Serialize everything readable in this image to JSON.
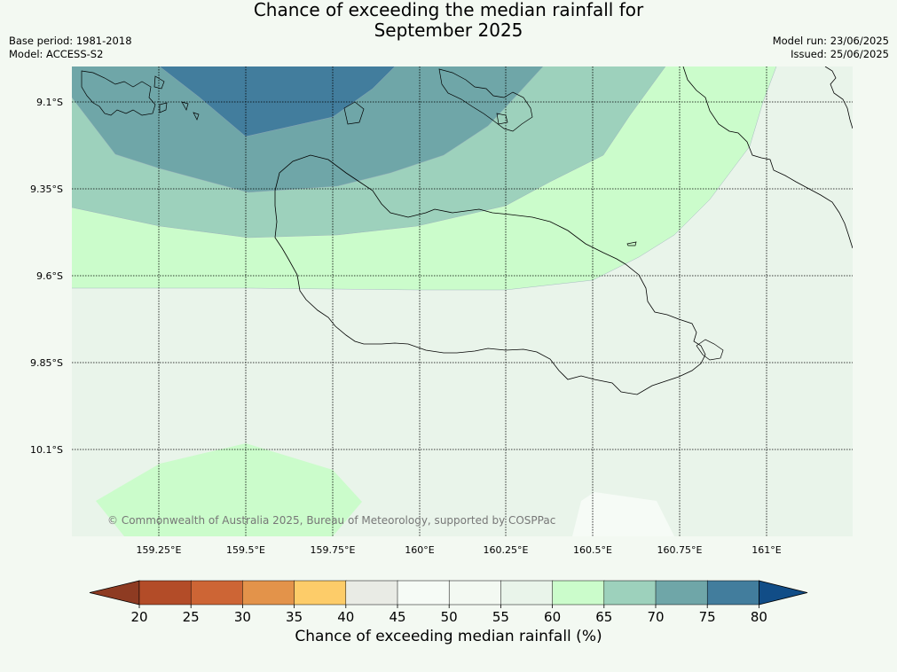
{
  "title_line1": "Chance of exceeding the median rainfall for",
  "title_line2": "September 2025",
  "meta_left": {
    "base_period": "Base period: 1981-2018",
    "model": "Model: ACCESS-S2"
  },
  "meta_right": {
    "model_run": "Model run: 23/06/2025",
    "issued": "Issued: 25/06/2025"
  },
  "map": {
    "lat_labels": [
      "9.1°S",
      "9.35°S",
      "9.6°S",
      "9.85°S",
      "10.1°S"
    ],
    "lon_labels": [
      "159.25°E",
      "159.5°E",
      "159.75°E",
      "160°E",
      "160.25°E",
      "160.5°E",
      "160.75°E",
      "161°E"
    ],
    "copyright": "© Commonwealth of Australia 2025, Bureau of Meteorology, supported by COSPPac"
  },
  "colorbar": {
    "label": "Chance of exceeding median rainfall (%)",
    "ticks": [
      "20",
      "25",
      "30",
      "35",
      "40",
      "45",
      "50",
      "55",
      "60",
      "65",
      "70",
      "75",
      "80"
    ],
    "colors": [
      "#8e3b22",
      "#b34c28",
      "#cd6535",
      "#e3934a",
      "#fdcc69",
      "#e9ebe5",
      "#f6fbf6",
      "#f3f9f2",
      "#e9f4ea",
      "#cbfccb",
      "#9dd1bc",
      "#6fa6a8",
      "#427d9d",
      "#114d87"
    ]
  }
}
